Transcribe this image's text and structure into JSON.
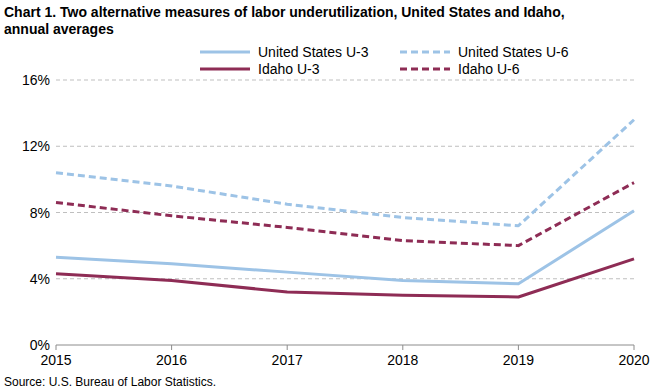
{
  "chart_data": {
    "type": "line",
    "title": "Chart 1. Two alternative measures of labor underutilization, United States and Idaho, annual averages",
    "source": "Source: U.S. Bureau of Labor Statistics.",
    "categories": [
      "2015",
      "2016",
      "2017",
      "2018",
      "2019",
      "2020"
    ],
    "series": [
      {
        "name": "United States U-3",
        "color": "#9dc3e6",
        "line_style": "solid",
        "values": [
          5.3,
          4.9,
          4.4,
          3.9,
          3.7,
          8.1
        ]
      },
      {
        "name": "United States U-6",
        "color": "#9dc3e6",
        "line_style": "dashed",
        "values": [
          10.4,
          9.6,
          8.5,
          7.7,
          7.2,
          13.6
        ]
      },
      {
        "name": "Idaho U-3",
        "color": "#8e2c55",
        "line_style": "solid",
        "values": [
          4.3,
          3.9,
          3.2,
          3.0,
          2.9,
          5.2
        ]
      },
      {
        "name": "Idaho U-6",
        "color": "#8e2c55",
        "line_style": "dashed",
        "values": [
          8.6,
          7.8,
          7.1,
          6.3,
          6.0,
          9.8
        ]
      }
    ],
    "ylim": [
      0,
      16
    ],
    "yticks": [
      {
        "value": 0,
        "label": "0%"
      },
      {
        "value": 4,
        "label": "4%"
      },
      {
        "value": 8,
        "label": "8%"
      },
      {
        "value": 12,
        "label": "12%"
      },
      {
        "value": 16,
        "label": "16%"
      }
    ],
    "grid": true,
    "legend": "top"
  }
}
